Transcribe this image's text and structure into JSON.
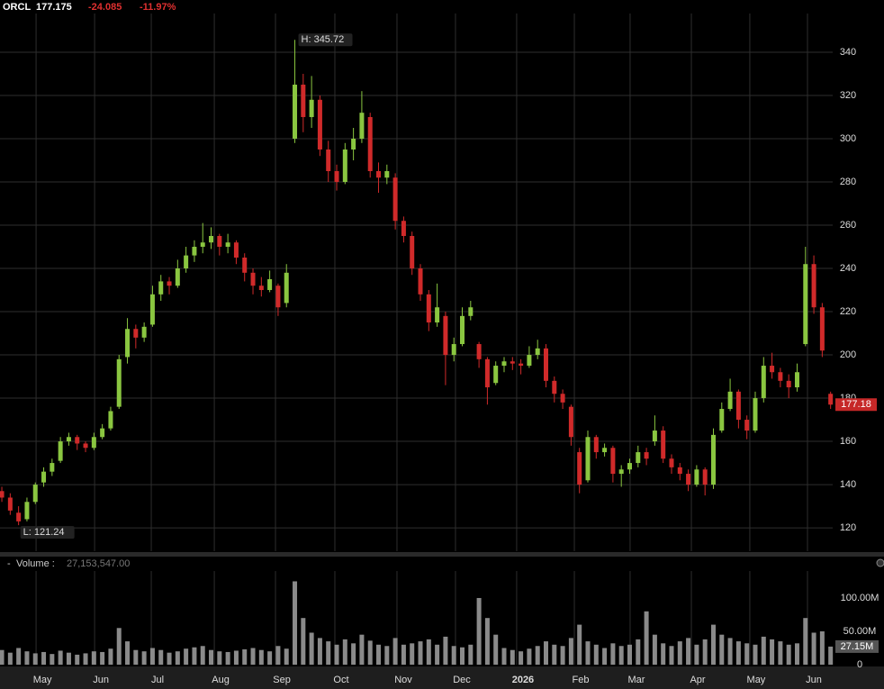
{
  "header": {
    "ticker": "ORCL",
    "price": "177.175",
    "change": "-24.085",
    "change_pct": "-11.97%"
  },
  "chart_data": [
    {
      "type": "candlestick",
      "up_color": "#8ac640",
      "down_color": "#d02a2a",
      "grid": true,
      "xlim": [
        -0.22,
        99.25
      ],
      "ylim": [
        109.2,
        357.9
      ],
      "yticks": [
        120,
        140,
        160,
        180,
        200,
        220,
        240,
        260,
        280,
        300,
        320,
        340
      ],
      "xticks": [
        {
          "value": 4.09,
          "label": "May"
        },
        {
          "value": 11.08,
          "label": "Jun"
        },
        {
          "value": 17.85,
          "label": "Jul"
        },
        {
          "value": 25.38,
          "label": "Aug"
        },
        {
          "value": 32.69,
          "label": "Sep"
        },
        {
          "value": 39.78,
          "label": "Oct"
        },
        {
          "value": 47.2,
          "label": "Nov"
        },
        {
          "value": 54.19,
          "label": "Dec"
        },
        {
          "value": 61.5,
          "label": "2026"
        },
        {
          "value": 68.39,
          "label": "Feb"
        },
        {
          "value": 75.05,
          "label": "Mar"
        },
        {
          "value": 82.37,
          "label": "Apr"
        },
        {
          "value": 89.35,
          "label": "May"
        },
        {
          "value": 96.24,
          "label": "Jun"
        }
      ],
      "high_label": "H: 345.72",
      "low_label": "L: 121.24",
      "last_label": "177.18",
      "ohlc": [
        [
          137,
          139,
          132,
          134
        ],
        [
          134,
          136,
          126,
          128
        ],
        [
          127,
          130,
          121.24,
          123
        ],
        [
          124,
          134,
          123,
          132
        ],
        [
          132,
          141,
          131,
          140
        ],
        [
          141,
          148,
          139,
          146
        ],
        [
          146,
          152,
          144,
          150
        ],
        [
          151,
          162,
          150,
          160
        ],
        [
          160,
          164,
          158,
          162
        ],
        [
          162,
          163,
          156,
          159
        ],
        [
          159,
          160,
          155,
          157
        ],
        [
          157,
          164,
          156,
          162
        ],
        [
          162,
          168,
          161,
          166
        ],
        [
          166,
          176,
          165,
          174
        ],
        [
          176,
          200,
          175,
          198
        ],
        [
          199,
          217,
          196,
          212
        ],
        [
          212,
          214,
          203,
          208
        ],
        [
          208,
          215,
          206,
          213
        ],
        [
          214,
          232,
          213,
          228
        ],
        [
          228,
          237,
          225,
          234
        ],
        [
          234,
          236,
          228,
          232
        ],
        [
          232,
          244,
          231,
          240
        ],
        [
          240,
          250,
          238,
          246
        ],
        [
          246,
          253,
          243,
          250
        ],
        [
          250,
          261,
          247,
          252
        ],
        [
          252,
          259,
          249,
          255
        ],
        [
          255,
          256,
          246,
          250
        ],
        [
          250,
          256,
          247,
          252
        ],
        [
          252,
          253,
          242,
          245
        ],
        [
          245,
          247,
          234,
          238
        ],
        [
          238,
          240,
          228,
          232
        ],
        [
          232,
          236,
          227,
          230
        ],
        [
          230,
          239,
          229,
          235
        ],
        [
          232,
          233,
          218,
          222
        ],
        [
          224,
          242,
          222,
          238
        ],
        [
          300,
          345.72,
          298,
          325
        ],
        [
          325,
          330,
          303,
          310
        ],
        [
          310,
          329,
          305,
          318
        ],
        [
          318,
          320,
          292,
          295
        ],
        [
          295,
          299,
          280,
          285
        ],
        [
          285,
          288,
          276,
          280
        ],
        [
          280,
          298,
          279,
          295
        ],
        [
          295,
          305,
          290,
          300
        ],
        [
          300,
          322,
          298,
          312
        ],
        [
          310,
          312,
          282,
          285
        ],
        [
          285,
          289,
          275,
          282
        ],
        [
          282,
          288,
          279,
          285
        ],
        [
          282,
          284,
          258,
          262
        ],
        [
          262,
          264,
          252,
          255
        ],
        [
          255,
          257,
          237,
          240
        ],
        [
          240,
          242,
          225,
          228
        ],
        [
          228,
          230,
          211,
          215
        ],
        [
          215,
          233,
          213,
          222
        ],
        [
          218,
          220,
          186,
          200
        ],
        [
          200,
          208,
          197,
          205
        ],
        [
          205,
          222,
          204,
          218
        ],
        [
          218,
          225,
          216,
          222
        ],
        [
          205,
          206,
          194,
          198
        ],
        [
          198,
          199,
          177,
          185
        ],
        [
          187,
          197,
          186,
          195
        ],
        [
          195,
          199,
          192,
          197
        ],
        [
          197,
          199,
          193,
          196
        ],
        [
          196,
          198,
          191,
          195
        ],
        [
          195,
          204,
          194,
          200
        ],
        [
          200,
          207,
          198,
          203
        ],
        [
          203,
          205,
          185,
          188
        ],
        [
          188,
          190,
          178,
          182
        ],
        [
          182,
          184,
          175,
          178
        ],
        [
          176,
          177,
          158,
          162
        ],
        [
          155,
          157,
          136,
          140
        ],
        [
          142,
          165,
          141,
          162
        ],
        [
          162,
          163,
          152,
          155
        ],
        [
          155,
          159,
          153,
          157
        ],
        [
          157,
          158,
          141,
          145
        ],
        [
          145,
          149,
          139,
          147
        ],
        [
          147,
          152,
          145,
          150
        ],
        [
          150,
          158,
          148,
          155
        ],
        [
          155,
          157,
          149,
          152
        ],
        [
          160,
          172,
          158,
          165
        ],
        [
          165,
          167,
          150,
          152
        ],
        [
          152,
          154,
          145,
          148
        ],
        [
          148,
          150,
          142,
          145
        ],
        [
          145,
          147,
          137,
          140
        ],
        [
          140,
          149,
          139,
          147
        ],
        [
          147,
          148,
          135,
          140
        ],
        [
          140,
          166,
          138,
          163
        ],
        [
          165,
          178,
          164,
          175
        ],
        [
          175,
          189,
          174,
          183
        ],
        [
          183,
          184,
          166,
          170
        ],
        [
          170,
          172,
          161,
          165
        ],
        [
          165,
          183,
          164,
          180
        ],
        [
          180,
          199,
          178,
          195
        ],
        [
          195,
          201,
          189,
          192
        ],
        [
          192,
          194,
          185,
          188
        ],
        [
          188,
          191,
          180,
          185
        ],
        [
          185,
          196,
          183,
          192
        ],
        [
          205,
          250,
          204,
          242
        ],
        [
          242,
          246,
          219,
          222
        ],
        [
          222,
          224,
          199,
          202
        ],
        [
          182,
          183,
          175,
          177
        ]
      ]
    },
    {
      "type": "volume",
      "color": "#8a8a8a",
      "toggle": "-",
      "label": "Volume :",
      "current": "27,153,547.00",
      "last_label": "27.15M",
      "xlim": [
        -0.22,
        99.25
      ],
      "ylim": [
        0,
        140500000
      ],
      "yticks": [
        0,
        {
          "value": 50000000,
          "label": "50.00M"
        },
        {
          "value": 100000000,
          "label": "100.00M"
        }
      ],
      "values": [
        22000000,
        18000000,
        25000000,
        20000000,
        17000000,
        19000000,
        16000000,
        21000000,
        18000000,
        15000000,
        17000000,
        20000000,
        19000000,
        24000000,
        55000000,
        35000000,
        22000000,
        20000000,
        25000000,
        22000000,
        18000000,
        20000000,
        24000000,
        26000000,
        28000000,
        22000000,
        20000000,
        19000000,
        21000000,
        23000000,
        25000000,
        22000000,
        20000000,
        28000000,
        24000000,
        125000000,
        70000000,
        48000000,
        40000000,
        35000000,
        30000000,
        38000000,
        32000000,
        45000000,
        36000000,
        30000000,
        28000000,
        40000000,
        30000000,
        32000000,
        35000000,
        38000000,
        30000000,
        42000000,
        28000000,
        26000000,
        30000000,
        100000000,
        70000000,
        45000000,
        25000000,
        22000000,
        20000000,
        24000000,
        28000000,
        35000000,
        30000000,
        28000000,
        40000000,
        60000000,
        35000000,
        30000000,
        25000000,
        32000000,
        28000000,
        30000000,
        38000000,
        80000000,
        45000000,
        32000000,
        28000000,
        35000000,
        40000000,
        30000000,
        38000000,
        60000000,
        45000000,
        40000000,
        35000000,
        32000000,
        30000000,
        42000000,
        38000000,
        35000000,
        30000000,
        32000000,
        70000000,
        48000000,
        50000000,
        27153547
      ]
    }
  ]
}
